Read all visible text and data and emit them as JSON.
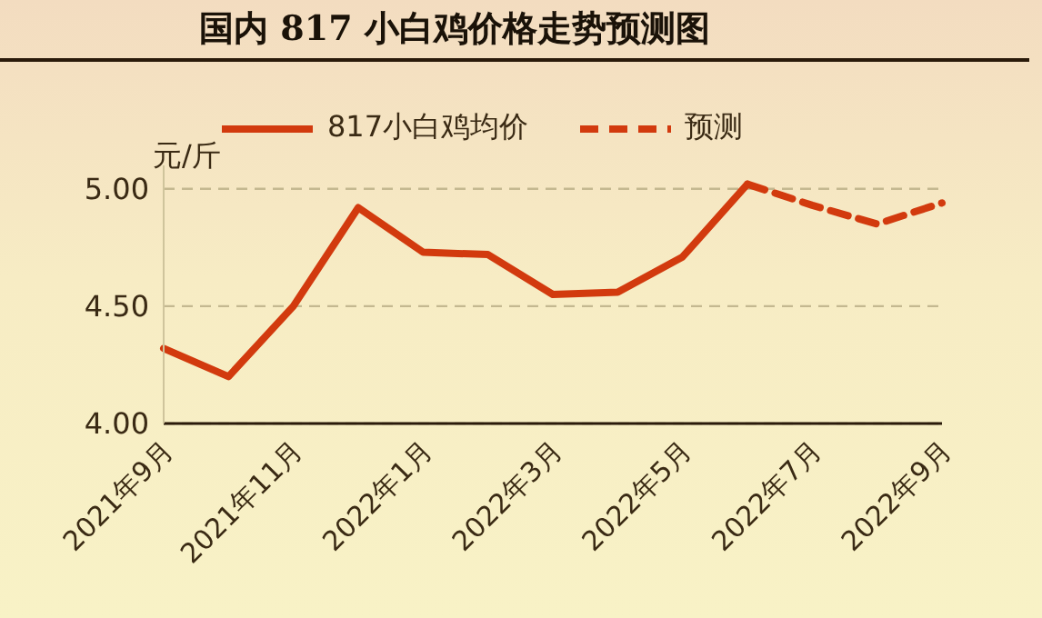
{
  "chart_data": {
    "type": "line",
    "title": "国内 817 小白鸡价格走势预测图",
    "ylabel": "元/斤",
    "categories": [
      "2021年9月",
      null,
      "2021年11月",
      null,
      "2022年1月",
      null,
      "2022年3月",
      null,
      "2022年5月",
      null,
      "2022年7月",
      null,
      "2022年9月"
    ],
    "series": [
      {
        "name": "817小白鸡均价",
        "color": "#d23a0e",
        "line_style": "solid",
        "values": [
          4.32,
          4.2,
          4.5,
          4.92,
          4.73,
          4.72,
          4.55,
          4.56,
          4.71,
          5.02,
          null,
          null,
          null
        ]
      },
      {
        "name": "预测",
        "color": "#d23a0e",
        "line_style": "dashed",
        "values": [
          null,
          null,
          null,
          null,
          null,
          null,
          null,
          null,
          null,
          5.02,
          4.93,
          4.85,
          4.94
        ]
      }
    ],
    "ylim": [
      4,
      5.1
    ],
    "yticks": [
      {
        "value": 4,
        "label": "4.00"
      },
      {
        "value": 4.5,
        "label": "4.50"
      },
      {
        "value": 5,
        "label": "5.00"
      }
    ],
    "grid": "y",
    "legend": "top",
    "marker": "none"
  }
}
